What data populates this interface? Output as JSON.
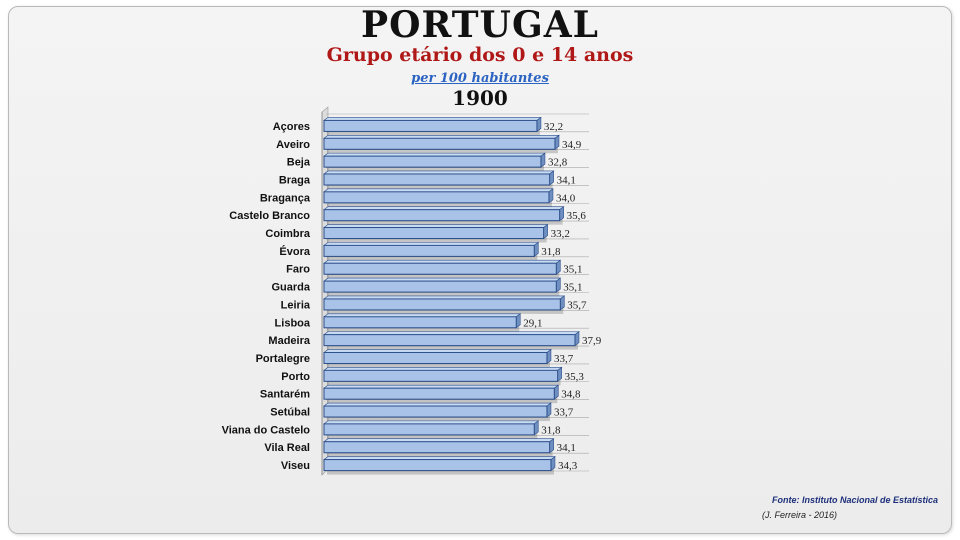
{
  "header": {
    "title": "PORTUGAL",
    "subtitle": "Grupo etário dos 0 e 14 anos",
    "unit": "per 100 habitantes",
    "year": "1900"
  },
  "footer": {
    "source": "Fonte: Instituto Nacional de Estatística",
    "author": "(J. Ferreira - 2016)"
  },
  "colors": {
    "bar_fill": "#a9c3e8",
    "bar_stroke": "#2c4f8c",
    "subtitle": "#b01818",
    "unit_link": "#2b63c2"
  },
  "chart_data": {
    "type": "bar",
    "orientation": "horizontal",
    "categories": [
      "Açores",
      "Aveiro",
      "Beja",
      "Braga",
      "Bragança",
      "Castelo Branco",
      "Coimbra",
      "Évora",
      "Faro",
      "Guarda",
      "Leiria",
      "Lisboa",
      "Madeira",
      "Portalegre",
      "Porto",
      "Santarém",
      "Setúbal",
      "Viana do Castelo",
      "Vila Real",
      "Viseu"
    ],
    "values": [
      32.2,
      34.9,
      32.8,
      34.1,
      34.0,
      35.6,
      33.2,
      31.8,
      35.1,
      35.1,
      35.7,
      29.1,
      37.9,
      33.7,
      35.3,
      34.8,
      33.7,
      31.8,
      34.1,
      34.3
    ],
    "data_labels": [
      "32,2",
      "34,9",
      "32,8",
      "34,1",
      "34,0",
      "35,6",
      "33,2",
      "31,8",
      "35,1",
      "35,1",
      "35,7",
      "29,1",
      "37,9",
      "33,7",
      "35,3",
      "34,8",
      "33,7",
      "31,8",
      "34,1",
      "34,3"
    ],
    "xlim": [
      0,
      40
    ],
    "grid": true,
    "legend": "none"
  }
}
